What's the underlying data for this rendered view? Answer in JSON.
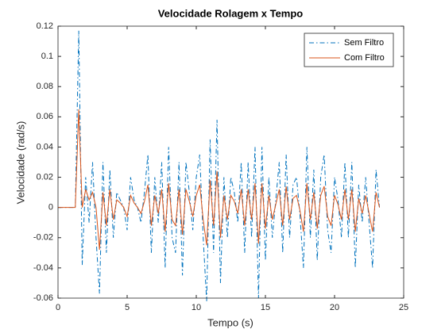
{
  "chart_data": {
    "type": "line",
    "title": "Velocidade Rolagem x Tempo",
    "xlabel": "Tempo (s)",
    "ylabel": "Velocidade (rad/s)",
    "x": [
      0,
      0.25,
      0.5,
      0.75,
      1,
      1.25,
      1.5,
      1.75,
      2,
      2.25,
      2.5,
      2.75,
      3,
      3.25,
      3.5,
      3.75,
      4,
      4.25,
      4.5,
      4.75,
      5,
      5.25,
      5.5,
      5.75,
      6,
      6.25,
      6.5,
      6.75,
      7,
      7.25,
      7.5,
      7.75,
      8,
      8.25,
      8.5,
      8.75,
      9,
      9.25,
      9.5,
      9.75,
      10,
      10.25,
      10.5,
      10.75,
      11,
      11.25,
      11.5,
      11.75,
      12,
      12.25,
      12.5,
      12.75,
      13,
      13.25,
      13.5,
      13.75,
      14,
      14.25,
      14.5,
      14.75,
      15,
      15.25,
      15.5,
      15.75,
      16,
      16.25,
      16.5,
      16.75,
      17,
      17.25,
      17.5,
      17.75,
      18,
      18.25,
      18.5,
      18.75,
      19,
      19.25,
      19.5,
      19.75,
      20,
      20.25,
      20.5,
      20.75,
      21,
      21.25,
      21.5,
      21.75,
      22,
      22.25,
      22.5,
      22.75,
      23,
      23.25
    ],
    "series": [
      {
        "name": "Sem Filtro",
        "color": "#0072BD",
        "dash": "dashdot",
        "values": [
          0,
          0,
          0,
          0,
          0,
          0,
          0.117,
          -0.038,
          0.02,
          -0.01,
          0.03,
          -0.02,
          -0.057,
          0.03,
          -0.03,
          0.025,
          -0.02,
          0.01,
          0.005,
          0,
          -0.015,
          0.02,
          0.005,
          0,
          -0.01,
          0.01,
          0.035,
          -0.03,
          0.02,
          -0.01,
          0.03,
          -0.04,
          0.04,
          -0.02,
          -0.03,
          0.03,
          -0.045,
          0.03,
          0.01,
          -0.015,
          0.02,
          0.035,
          -0.02,
          -0.062,
          0.045,
          -0.03,
          0.058,
          -0.05,
          0.02,
          -0.02,
          0.02,
          0.01,
          -0.01,
          0.03,
          -0.03,
          0.03,
          -0.02,
          0.04,
          -0.06,
          0.04,
          -0.035,
          0.02,
          -0.02,
          0.005,
          0.03,
          -0.03,
          0.035,
          -0.02,
          0.015,
          0.02,
          -0.005,
          -0.04,
          0.04,
          -0.02,
          0.025,
          -0.035,
          0.02,
          0.035,
          -0.015,
          -0.03,
          0.02,
          0.005,
          -0.02,
          0.03,
          -0.02,
          0.03,
          -0.04,
          0.015,
          -0.01,
          0.02,
          -0.01,
          -0.04,
          0.025,
          0
        ]
      },
      {
        "name": "Com Filtro",
        "color": "#D95319",
        "dash": "solid",
        "values": [
          0,
          0,
          0,
          0,
          0,
          0,
          0.065,
          0,
          0.012,
          0.005,
          0.01,
          0,
          -0.028,
          0.01,
          -0.012,
          0.012,
          -0.008,
          0.005,
          0.003,
          0,
          -0.006,
          0.008,
          0.003,
          0,
          -0.004,
          0.004,
          0.015,
          -0.012,
          0.008,
          -0.004,
          0.012,
          -0.016,
          0.016,
          -0.008,
          -0.012,
          0.012,
          -0.018,
          0.012,
          0.004,
          -0.006,
          0.008,
          0.015,
          -0.008,
          -0.025,
          0.018,
          -0.012,
          0.024,
          -0.02,
          0.008,
          -0.008,
          0.008,
          0.004,
          -0.004,
          0.012,
          -0.012,
          0.012,
          -0.008,
          0.016,
          -0.024,
          0.016,
          -0.014,
          0.008,
          -0.008,
          0.002,
          0.012,
          -0.012,
          0.014,
          -0.008,
          0.006,
          0.008,
          -0.002,
          -0.016,
          0.016,
          -0.008,
          0.01,
          -0.014,
          0.008,
          0.014,
          -0.006,
          -0.012,
          0.008,
          0.002,
          -0.008,
          0.012,
          -0.008,
          0.012,
          -0.016,
          0.006,
          -0.004,
          0.008,
          -0.004,
          -0.016,
          0.01,
          0
        ]
      }
    ],
    "xlim": [
      0,
      25
    ],
    "xticks": [
      0,
      5,
      10,
      15,
      20,
      25
    ],
    "ylim": [
      -0.06,
      0.12
    ],
    "yticks": [
      -0.06,
      -0.04,
      -0.02,
      0,
      0.02,
      0.04,
      0.06,
      0.08,
      0.1,
      0.12
    ],
    "grid": false,
    "legend": "northeast"
  }
}
